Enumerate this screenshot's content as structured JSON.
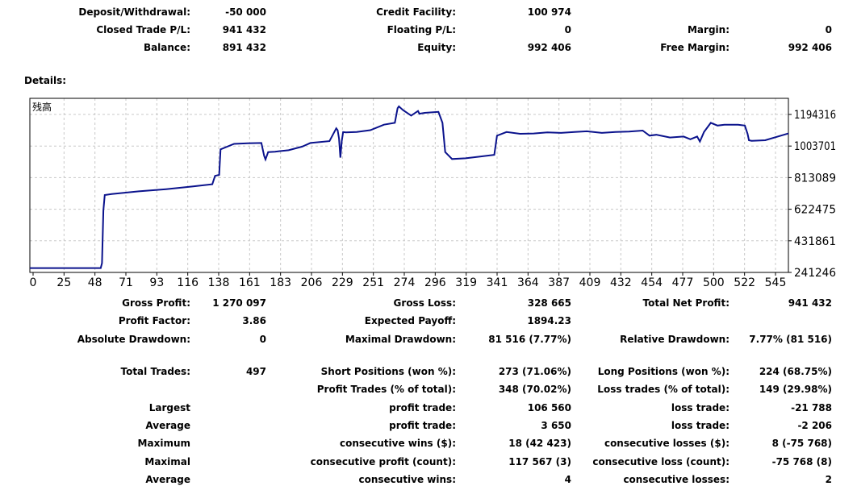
{
  "summary": [
    [
      [
        "Deposit/Withdrawal:",
        "-50 000"
      ],
      [
        "Credit Facility:",
        "100 974"
      ],
      [
        "",
        ""
      ]
    ],
    [
      [
        "Closed Trade P/L:",
        "941 432"
      ],
      [
        "Floating P/L:",
        "0"
      ],
      [
        "Margin:",
        "0"
      ]
    ],
    [
      [
        "Balance:",
        "891 432"
      ],
      [
        "Equity:",
        "992 406"
      ],
      [
        "Free Margin:",
        "992 406"
      ]
    ]
  ],
  "details_label": "Details:",
  "chart_data": {
    "type": "line",
    "title": "残高",
    "x_ticks": [
      "0",
      "25",
      "48",
      "71",
      "93",
      "116",
      "138",
      "161",
      "183",
      "206",
      "229",
      "251",
      "274",
      "296",
      "319",
      "341",
      "364",
      "387",
      "409",
      "432",
      "454",
      "477",
      "500",
      "522",
      "545"
    ],
    "y_ticks": [
      "1194316",
      "1003701",
      "813089",
      "622475",
      "431861",
      "241246"
    ],
    "ylim": [
      241246,
      1194316
    ],
    "xlim": [
      0,
      557
    ],
    "grid": true,
    "color": "#0a128c",
    "series": [
      {
        "x": [
          0,
          52,
          53,
          54,
          55,
          60,
          80,
          100,
          120,
          134,
          136,
          139,
          140,
          150,
          160,
          170,
          172,
          173,
          175,
          180,
          183,
          190,
          200,
          206,
          220,
          225,
          226,
          227,
          228,
          229,
          230,
          232,
          240,
          250,
          260,
          268,
          270,
          271,
          274,
          280,
          285,
          286,
          290,
          300,
          303,
          305,
          310,
          320,
          330,
          341,
          343,
          350,
          360,
          370,
          380,
          390,
          400,
          409,
          420,
          430,
          440,
          450,
          455,
          460,
          470,
          480,
          485,
          490,
          492,
          495,
          500,
          505,
          510,
          520,
          525,
          527,
          528,
          530,
          540,
          557
        ],
        "y": [
          265000,
          265000,
          292000,
          580000,
          665000,
          670000,
          685000,
          697000,
          712000,
          724000,
          770000,
          775000,
          915000,
          945000,
          948000,
          950000,
          880000,
          860000,
          900000,
          902000,
          905000,
          910000,
          930000,
          950000,
          960000,
          1030000,
          1020000,
          975000,
          870000,
          960000,
          1010000,
          1008000,
          1010000,
          1020000,
          1050000,
          1060000,
          1140000,
          1150000,
          1130000,
          1100000,
          1125000,
          1110000,
          1115000,
          1120000,
          1060000,
          900000,
          862000,
          866000,
          875000,
          885000,
          990000,
          1010000,
          1000000,
          1002000,
          1008000,
          1005000,
          1010000,
          1014000,
          1005000,
          1010000,
          1012000,
          1018000,
          990000,
          995000,
          980000,
          985000,
          970000,
          985000,
          958000,
          1010000,
          1060000,
          1045000,
          1050000,
          1050000,
          1045000,
          1000000,
          965000,
          962000,
          965000,
          1002000
        ]
      }
    ]
  },
  "stats": {
    "gross_profit": [
      "Gross Profit:",
      "1 270 097"
    ],
    "gross_loss": [
      "Gross Loss:",
      "328 665"
    ],
    "total_net_profit": [
      "Total Net Profit:",
      "941 432"
    ],
    "profit_factor": [
      "Profit Factor:",
      "3.86"
    ],
    "expected_payoff": [
      "Expected Payoff:",
      "1894.23"
    ],
    "absolute_drawdown": [
      "Absolute Drawdown:",
      "0"
    ],
    "maximal_drawdown": [
      "Maximal Drawdown:",
      "81 516 (7.77%)"
    ],
    "relative_drawdown": [
      "Relative Drawdown:",
      "7.77% (81 516)"
    ],
    "total_trades": [
      "Total Trades:",
      "497"
    ],
    "short_positions": [
      "Short Positions (won %):",
      "273 (71.06%)"
    ],
    "long_positions": [
      "Long Positions (won %):",
      "224 (68.75%)"
    ],
    "profit_trades": [
      "Profit Trades (% of total):",
      "348 (70.02%)"
    ],
    "loss_trades": [
      "Loss trades (% of total):",
      "149 (29.98%)"
    ],
    "largest": [
      "Largest",
      "profit trade:",
      "106 560",
      "loss trade:",
      "-21 788"
    ],
    "average_trade": [
      "Average",
      "profit trade:",
      "3 650",
      "loss trade:",
      "-2 206"
    ],
    "maximum_consecutive": [
      "Maximum",
      "consecutive wins ($):",
      "18 (42 423)",
      "consecutive losses ($):",
      "8 (-75 768)"
    ],
    "maximal_consecutive": [
      "Maximal",
      "consecutive profit (count):",
      "117 567 (3)",
      "consecutive loss (count):",
      "-75 768 (8)"
    ],
    "average_consecutive": [
      "Average",
      "consecutive wins:",
      "4",
      "consecutive losses:",
      "2"
    ]
  }
}
